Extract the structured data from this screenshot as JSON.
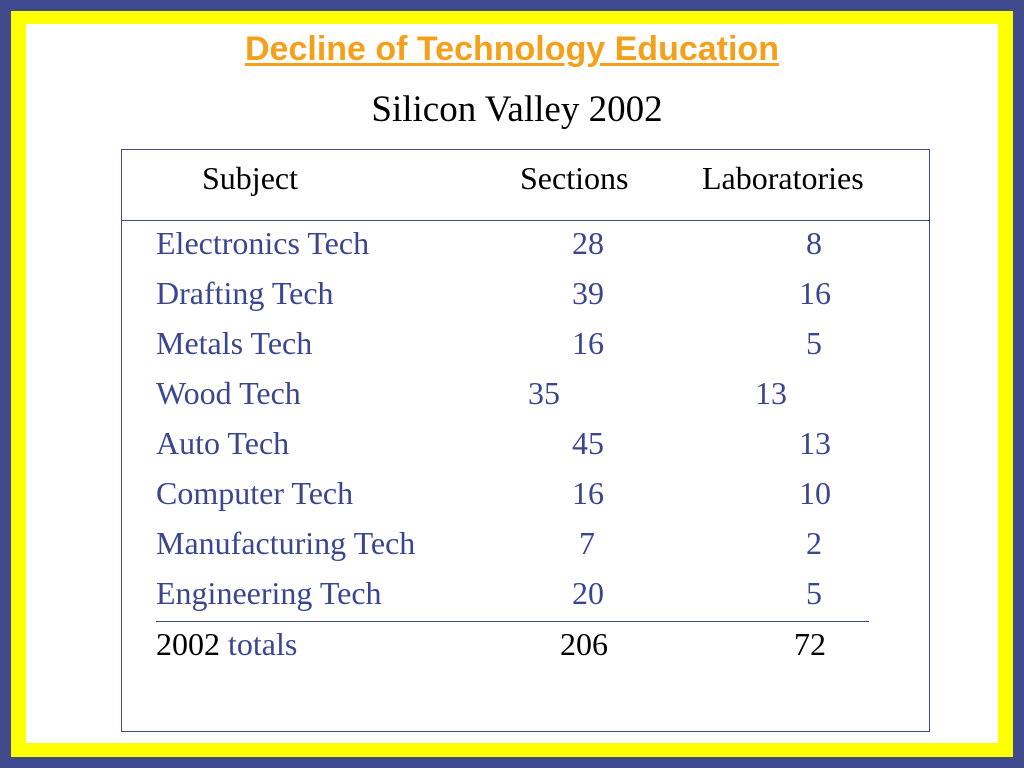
{
  "title": "Decline of Technology Education",
  "subtitle": "Silicon Valley 2002",
  "table": {
    "headers": [
      "Subject",
      "Sections",
      "Laboratories"
    ],
    "rows": [
      {
        "subject": "Electronics Tech",
        "sections": "28",
        "labs": "8"
      },
      {
        "subject": "Drafting Tech",
        "sections": "39",
        "labs": "16"
      },
      {
        "subject": "Metals Tech",
        "sections": "16",
        "labs": "5"
      },
      {
        "subject": "Wood Tech",
        "sections": "35",
        "labs": "13"
      },
      {
        "subject": "Auto Tech",
        "sections": "45",
        "labs": "13"
      },
      {
        "subject": "Computer Tech",
        "sections": "16",
        "labs": "10"
      },
      {
        "subject": "Manufacturing Tech",
        "sections": "7",
        "labs": "2"
      },
      {
        "subject": "Engineering Tech",
        "sections": "20",
        "labs": "5"
      }
    ],
    "totals": {
      "year": "2002",
      "label": "totals",
      "sections": "206",
      "labs": "72"
    }
  },
  "colors": {
    "border_blue": "#3f4a8c",
    "border_yellow": "#ffff00",
    "title": "#f5a01a",
    "row_text": "#3a4690"
  }
}
